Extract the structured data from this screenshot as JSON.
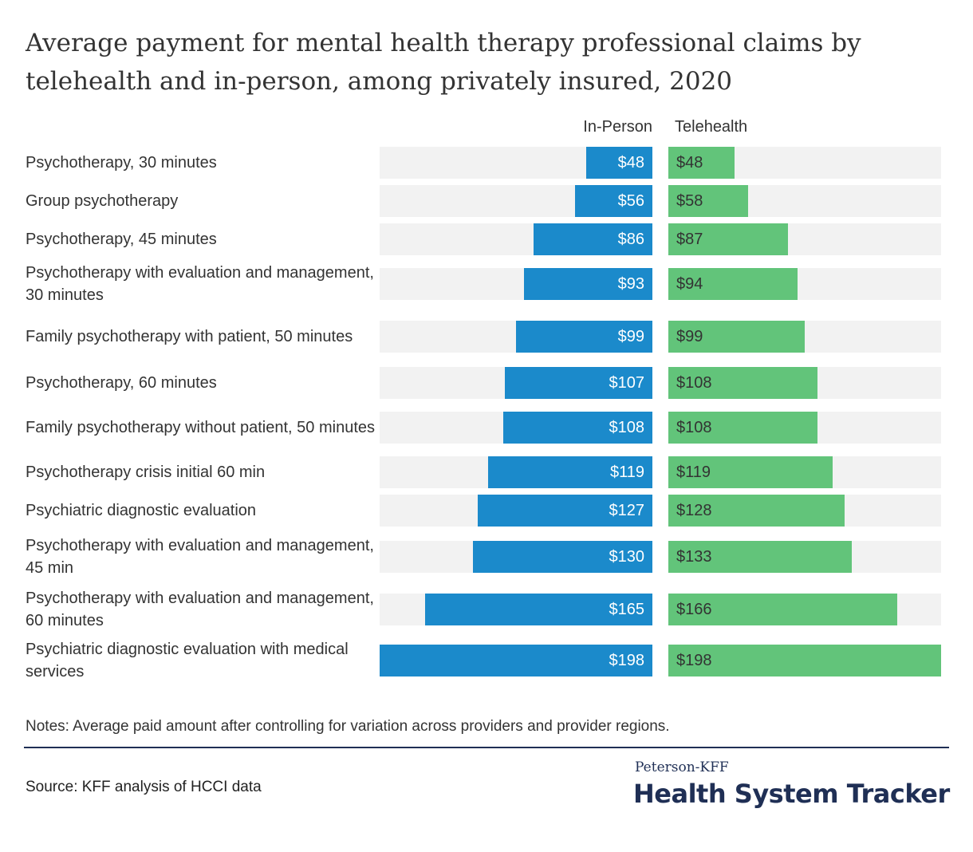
{
  "title": "Average payment for mental health therapy professional claims by telehealth and in-person, among privately insured, 2020",
  "columns": {
    "in_person": "In-Person",
    "telehealth": "Telehealth"
  },
  "chart_data": {
    "type": "bar",
    "orientation": "horizontal-butterfly",
    "title": "Average payment for mental health therapy professional claims by telehealth and in-person, among privately insured, 2020",
    "categories": [
      "Psychotherapy, 30 minutes",
      "Group psychotherapy",
      "Psychotherapy, 45 minutes",
      "Psychotherapy with evaluation and management, 30 minutes",
      "Family psychotherapy with patient, 50 minutes",
      "Psychotherapy, 60 minutes",
      "Family psychotherapy without patient, 50 minutes",
      "Psychotherapy crisis initial 60 min",
      "Psychiatric diagnostic evaluation",
      "Psychotherapy with evaluation and management, 45 min",
      "Psychotherapy with evaluation and management, 60 minutes",
      "Psychiatric diagnostic evaluation with medical services"
    ],
    "series": [
      {
        "name": "In-Person",
        "color": "#1b8acb",
        "values": [
          48,
          56,
          86,
          93,
          99,
          107,
          108,
          119,
          127,
          130,
          165,
          198
        ]
      },
      {
        "name": "Telehealth",
        "color": "#62c47a",
        "values": [
          48,
          58,
          87,
          94,
          99,
          108,
          108,
          119,
          128,
          133,
          166,
          198
        ]
      }
    ],
    "value_prefix": "$",
    "xlim": [
      0,
      198
    ],
    "grid": false
  },
  "footer": {
    "notes": "Notes: Average paid amount after controlling for variation across providers and provider regions.",
    "source": "Source: KFF analysis of HCCI data",
    "logo_top": "Peterson-KFF",
    "logo_main": "Health System Tracker"
  }
}
